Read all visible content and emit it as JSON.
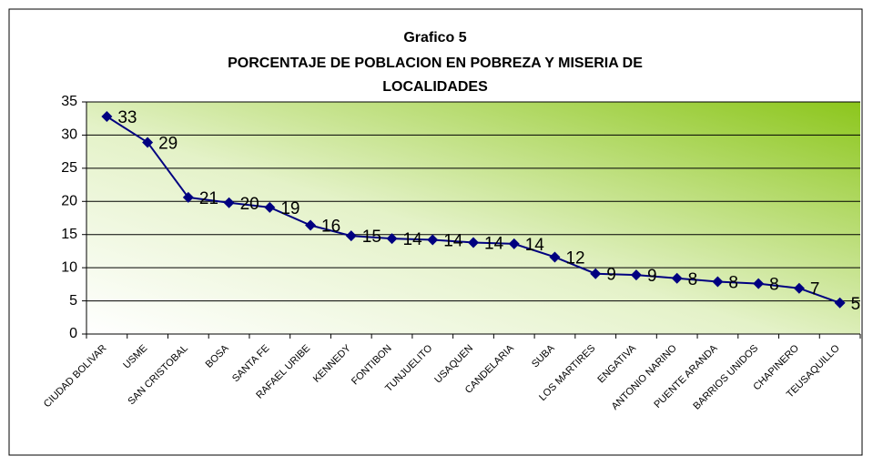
{
  "chart_data": {
    "type": "line",
    "title": "Grafico 5",
    "subtitle": [
      "PORCENTAJE DE POBLACION EN POBREZA Y MISERIA DE",
      "LOCALIDADES"
    ],
    "categories": [
      "CIUDAD BOLIVAR",
      "USME",
      "SAN CRISTOBAL",
      "BOSA",
      "SANTA FE",
      "RAFAEL URIBE",
      "KENNEDY",
      "FONTIBON",
      "TUNJUELITO",
      "USAQUEN",
      "CANDELARIA",
      "SUBA",
      "LOS MARTIRES",
      "ENGATIVA",
      "ANTONIO NARINO",
      "PUENTE ARANDA",
      "BARRIOS UNIDOS",
      "CHAPINERO",
      "TEUSAQUILLO"
    ],
    "values": [
      32.8,
      28.9,
      20.6,
      19.8,
      19.1,
      16.4,
      14.8,
      14.4,
      14.2,
      13.8,
      13.6,
      11.6,
      9.1,
      8.9,
      8.4,
      7.9,
      7.6,
      6.9,
      4.7
    ],
    "value_labels": [
      "33",
      "29",
      "21",
      "20",
      "19",
      "16",
      "15",
      "14",
      "14",
      "14",
      "14",
      "12",
      "9",
      "9",
      "8",
      "8",
      "8",
      "7",
      "5"
    ],
    "color": "#000080",
    "ylim": [
      0,
      35
    ],
    "yticks": [
      0,
      5,
      10,
      15,
      20,
      25,
      30,
      35
    ],
    "grid": true
  }
}
